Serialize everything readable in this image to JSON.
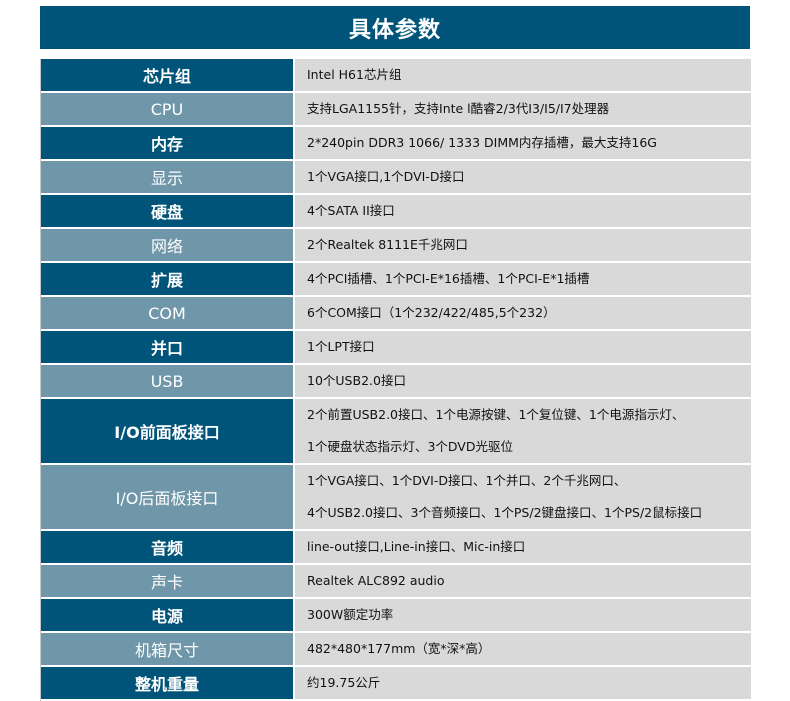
{
  "title": "具体参数",
  "colors": {
    "header": "#015479",
    "label_dark": "#015479",
    "label_light": "#6f97a9",
    "value_bg": "#d9d9d9"
  },
  "rows": [
    {
      "label": "芯片组",
      "lines": [
        "Intel H61芯片组"
      ]
    },
    {
      "label": "CPU",
      "lines": [
        "支持LGA1155针，支持Inte l酷睿2/3代I3/I5/I7处理器"
      ]
    },
    {
      "label": "内存",
      "lines": [
        "2*240pin DDR3 1066/ 1333 DIMM内存插槽，最大支持16G"
      ]
    },
    {
      "label": "显示",
      "lines": [
        "1个VGA接口,1个DVI-D接口"
      ]
    },
    {
      "label": "硬盘",
      "lines": [
        "4个SATA II接口"
      ]
    },
    {
      "label": "网络",
      "lines": [
        "2个Realtek 8111E千兆网口"
      ]
    },
    {
      "label": "扩展",
      "lines": [
        "4个PCI插槽、1个PCI-E*16插槽、1个PCI-E*1插槽"
      ]
    },
    {
      "label": "COM",
      "lines": [
        "6个COM接口（1个232/422/485,5个232）"
      ]
    },
    {
      "label": "并口",
      "lines": [
        "1个LPT接口"
      ]
    },
    {
      "label": "USB",
      "lines": [
        "10个USB2.0接口"
      ]
    },
    {
      "label": "I/O前面板接口",
      "lines": [
        "2个前置USB2.0接口、1个电源按键、1个复位键、1个电源指示灯、",
        "1个硬盘状态指示灯、3个DVD光驱位"
      ]
    },
    {
      "label": "I/O后面板接口",
      "lines": [
        "1个VGA接口、1个DVI-D接口、1个并口、2个千兆网口、",
        "4个USB2.0接口、3个音频接口、1个PS/2键盘接口、1个PS/2鼠标接口"
      ]
    },
    {
      "label": "音频",
      "lines": [
        "line-out接口,Line-in接口、Mic-in接口"
      ]
    },
    {
      "label": "声卡",
      "lines": [
        "Realtek ALC892 audio"
      ]
    },
    {
      "label": "电源",
      "lines": [
        "300W额定功率"
      ]
    },
    {
      "label": "机箱尺寸",
      "lines": [
        "482*480*177mm（宽*深*高）"
      ]
    },
    {
      "label": "整机重量",
      "lines": [
        "约19.75公斤"
      ]
    }
  ]
}
